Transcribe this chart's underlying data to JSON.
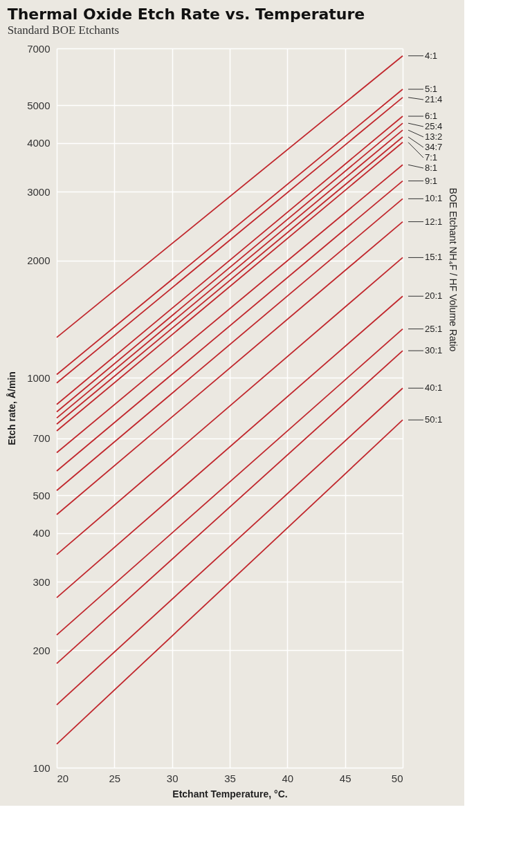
{
  "chart_data": {
    "type": "line",
    "title": "Thermal Oxide Etch Rate vs. Temperature",
    "subtitle": "Standard BOE Etchants",
    "xlabel": "Etchant Temperature, °C.",
    "ylabel": "Etch rate, Å/min",
    "y2label": "BOE Etchant NH₄F / HF Volume Ratio",
    "x": [
      20,
      50
    ],
    "log": "y",
    "grid": true,
    "legend": false,
    "line_style": "solid",
    "marker": "none",
    "xlim": [
      20,
      50
    ],
    "xticks": [
      20,
      25,
      30,
      35,
      40,
      45,
      50
    ],
    "ylim": [
      100,
      7000
    ],
    "yticks": [
      100,
      200,
      300,
      400,
      500,
      700,
      1000,
      2000,
      3000,
      4000,
      5000,
      7000
    ],
    "series": [
      {
        "name": "4:1",
        "color": "#c1272d",
        "values": [
          1270,
          6700
        ]
      },
      {
        "name": "5:1",
        "color": "#c1272d",
        "values": [
          1020,
          5500
        ]
      },
      {
        "name": "21:4",
        "color": "#c1272d",
        "values": [
          970,
          5240
        ]
      },
      {
        "name": "6:1",
        "color": "#c1272d",
        "values": [
          855,
          4690
        ]
      },
      {
        "name": "25:4",
        "color": "#c1272d",
        "values": [
          818,
          4500
        ]
      },
      {
        "name": "13:2",
        "color": "#c1272d",
        "values": [
          789,
          4320
        ]
      },
      {
        "name": "34:7",
        "color": "#c1272d",
        "values": [
          761,
          4150
        ]
      },
      {
        "name": "7:1",
        "color": "#c1272d",
        "values": [
          731,
          4020
        ]
      },
      {
        "name": "8:1",
        "color": "#c1272d",
        "values": [
          643,
          3520
        ]
      },
      {
        "name": "9:1",
        "color": "#c1272d",
        "values": [
          577,
          3200
        ]
      },
      {
        "name": "10:1",
        "color": "#c1272d",
        "values": [
          514,
          2880
        ]
      },
      {
        "name": "12:1",
        "color": "#c1272d",
        "values": [
          446,
          2515
        ]
      },
      {
        "name": "15:1",
        "color": "#c1272d",
        "values": [
          352,
          2035
        ]
      },
      {
        "name": "20:1",
        "color": "#c1272d",
        "values": [
          273,
          1620
        ]
      },
      {
        "name": "25:1",
        "color": "#c1272d",
        "values": [
          219,
          1335
        ]
      },
      {
        "name": "30:1",
        "color": "#c1272d",
        "values": [
          185,
          1174
        ]
      },
      {
        "name": "40:1",
        "color": "#c1272d",
        "values": [
          145,
          941
        ]
      },
      {
        "name": "50:1",
        "color": "#c1272d",
        "values": [
          115,
          780
        ]
      }
    ]
  }
}
